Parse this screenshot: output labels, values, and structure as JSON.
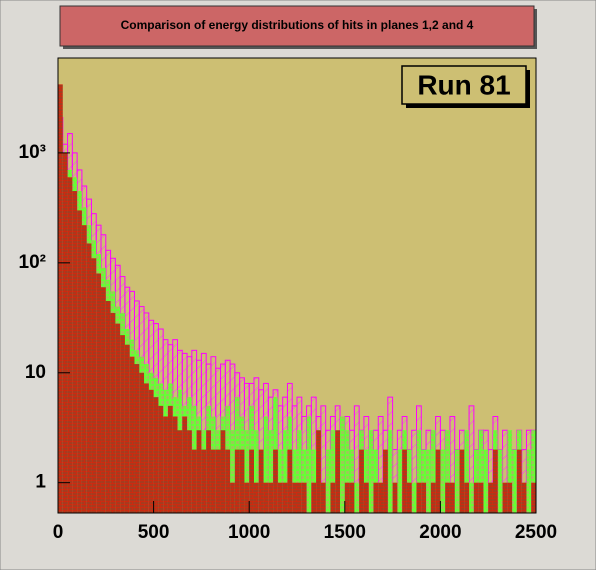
{
  "chart_data": {
    "type": "histogram",
    "title": "Comparison of energy distributions of hits in planes 1,2 and 4",
    "annotation": "Run 81",
    "log_y": true,
    "bins": [
      0,
      25,
      50,
      75,
      100,
      125,
      150,
      175,
      200,
      225,
      250,
      275,
      300,
      325,
      350,
      375,
      400,
      425,
      450,
      475,
      500,
      525,
      550,
      575,
      600,
      625,
      650,
      675,
      700,
      725,
      750,
      775,
      800,
      825,
      850,
      875,
      900,
      925,
      950,
      975,
      1000,
      1025,
      1050,
      1075,
      1100,
      1125,
      1150,
      1175,
      1200,
      1225,
      1250,
      1275,
      1300,
      1325,
      1350,
      1375,
      1400,
      1425,
      1450,
      1475,
      1500,
      1525,
      1550,
      1575,
      1600,
      1625,
      1650,
      1675,
      1700,
      1725,
      1750,
      1775,
      1800,
      1825,
      1850,
      1875,
      1900,
      1925,
      1950,
      1975,
      2000,
      2025,
      2050,
      2075,
      2100,
      2125,
      2150,
      2175,
      2200,
      2225,
      2250,
      2275,
      2300,
      2325,
      2350,
      2375,
      2400,
      2425,
      2450,
      2475,
      2500
    ],
    "series": [
      {
        "color": "#ff00ff",
        "pattern": "hatch",
        "values": [
          2100,
          1200,
          1500,
          1000,
          700,
          500,
          380,
          280,
          220,
          180,
          130,
          110,
          95,
          75,
          60,
          55,
          45,
          40,
          35,
          30,
          28,
          25,
          20,
          18,
          20,
          16,
          15,
          14,
          16,
          13,
          15,
          12,
          14,
          11,
          12,
          13,
          12,
          10,
          9,
          8,
          8,
          9,
          7,
          8,
          6,
          7,
          5,
          6,
          8,
          5,
          6,
          4,
          5,
          6,
          4,
          5,
          3,
          4,
          5,
          3,
          4,
          3,
          5,
          3,
          4,
          2,
          3,
          4,
          3,
          6,
          2,
          3,
          4,
          2,
          3,
          5,
          2,
          3,
          2,
          4,
          3,
          2,
          4,
          2,
          3,
          2,
          5,
          2,
          3,
          3,
          2,
          4,
          2,
          3,
          2,
          2,
          3,
          2,
          3,
          3
        ]
      },
      {
        "color": "#66ff33",
        "pattern": "grid",
        "values": [
          1400,
          1000,
          700,
          600,
          450,
          320,
          220,
          160,
          120,
          90,
          70,
          55,
          40,
          35,
          25,
          20,
          16,
          14,
          12,
          10,
          9,
          8,
          7,
          8,
          6,
          7,
          5,
          6,
          5,
          4,
          3,
          5,
          4,
          3,
          4,
          5,
          3,
          6,
          4,
          3,
          5,
          3,
          2,
          4,
          3,
          6,
          2,
          3,
          4,
          2,
          3,
          2,
          4,
          2,
          3,
          1,
          2,
          3,
          2,
          4,
          3,
          2,
          1,
          3,
          2,
          3,
          2,
          1,
          2,
          3,
          1,
          2,
          3,
          2,
          1,
          3,
          2,
          2,
          3,
          1,
          2,
          3,
          1,
          2,
          2,
          3,
          1,
          2,
          3,
          2,
          1,
          3,
          2,
          1,
          3,
          2,
          3,
          1,
          2,
          3
        ]
      },
      {
        "color": "#ff0000",
        "pattern": "brick",
        "values": [
          4200,
          1000,
          600,
          450,
          300,
          220,
          150,
          110,
          80,
          60,
          45,
          35,
          28,
          22,
          18,
          14,
          12,
          10,
          8,
          7,
          6,
          5,
          4,
          5,
          4,
          3,
          4,
          3,
          2,
          3,
          2,
          3,
          2,
          2,
          3,
          2,
          1,
          2,
          2,
          1,
          2,
          1,
          2,
          1,
          1,
          2,
          1,
          1,
          2,
          1,
          1,
          1,
          0,
          1,
          3,
          1,
          0,
          1,
          3,
          0,
          1,
          1,
          0,
          2,
          1,
          0,
          1,
          1,
          2,
          0,
          1,
          0,
          2,
          1,
          0,
          1,
          1,
          0,
          1,
          2,
          0,
          1,
          1,
          0,
          2,
          1,
          0,
          1,
          1,
          0,
          1,
          2,
          0,
          1,
          1,
          0,
          2,
          1,
          0,
          1
        ]
      }
    ],
    "xlim": [
      0,
      2500
    ],
    "xticks": [
      0,
      500,
      1000,
      1500,
      2000,
      2500
    ],
    "ylim": [
      0.53,
      7300
    ],
    "yticks": [
      1,
      10,
      {
        "value": 100,
        "label": "10²"
      },
      {
        "value": 1000,
        "label": "10³"
      }
    ]
  }
}
